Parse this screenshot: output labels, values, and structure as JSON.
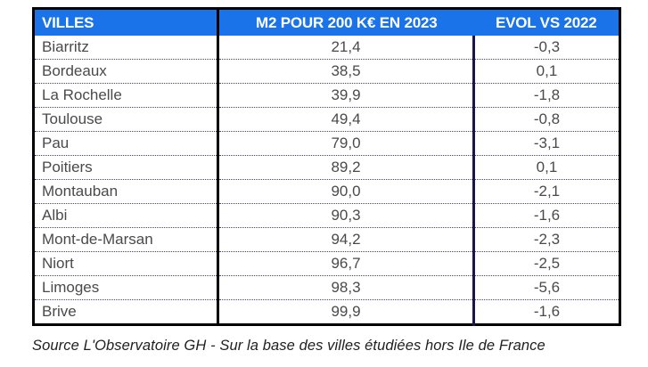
{
  "colors": {
    "header_bg": "#1a73e8",
    "header_text": "#ffffff",
    "body_text": "#4a4a4a",
    "outer_border": "#000000",
    "navy_divider": "#17174e",
    "dotted_separator": "#44446e"
  },
  "chart_data": {
    "type": "table",
    "columns": [
      "VILLES",
      "M2 POUR 200 K€ EN 2023",
      "EVOL VS 2022"
    ],
    "rows": [
      [
        "Biarritz",
        "21,4",
        "-0,3"
      ],
      [
        "Bordeaux",
        "38,5",
        "0,1"
      ],
      [
        "La Rochelle",
        "39,9",
        "-1,8"
      ],
      [
        "Toulouse",
        "49,4",
        "-0,8"
      ],
      [
        "Pau",
        "79,0",
        "-3,1"
      ],
      [
        "Poitiers",
        "89,2",
        "0,1"
      ],
      [
        "Montauban",
        "90,0",
        "-2,1"
      ],
      [
        "Albi",
        "90,3",
        "-1,6"
      ],
      [
        "Mont-de-Marsan",
        "94,2",
        "-2,3"
      ],
      [
        "Niort",
        "96,7",
        "-2,5"
      ],
      [
        "Limoges",
        "98,3",
        "-5,6"
      ],
      [
        "Brive",
        "99,9",
        "-1,6"
      ]
    ],
    "source_note": "Source L'Observatoire GH - Sur la base des villes étudiées hors Ile de France"
  }
}
